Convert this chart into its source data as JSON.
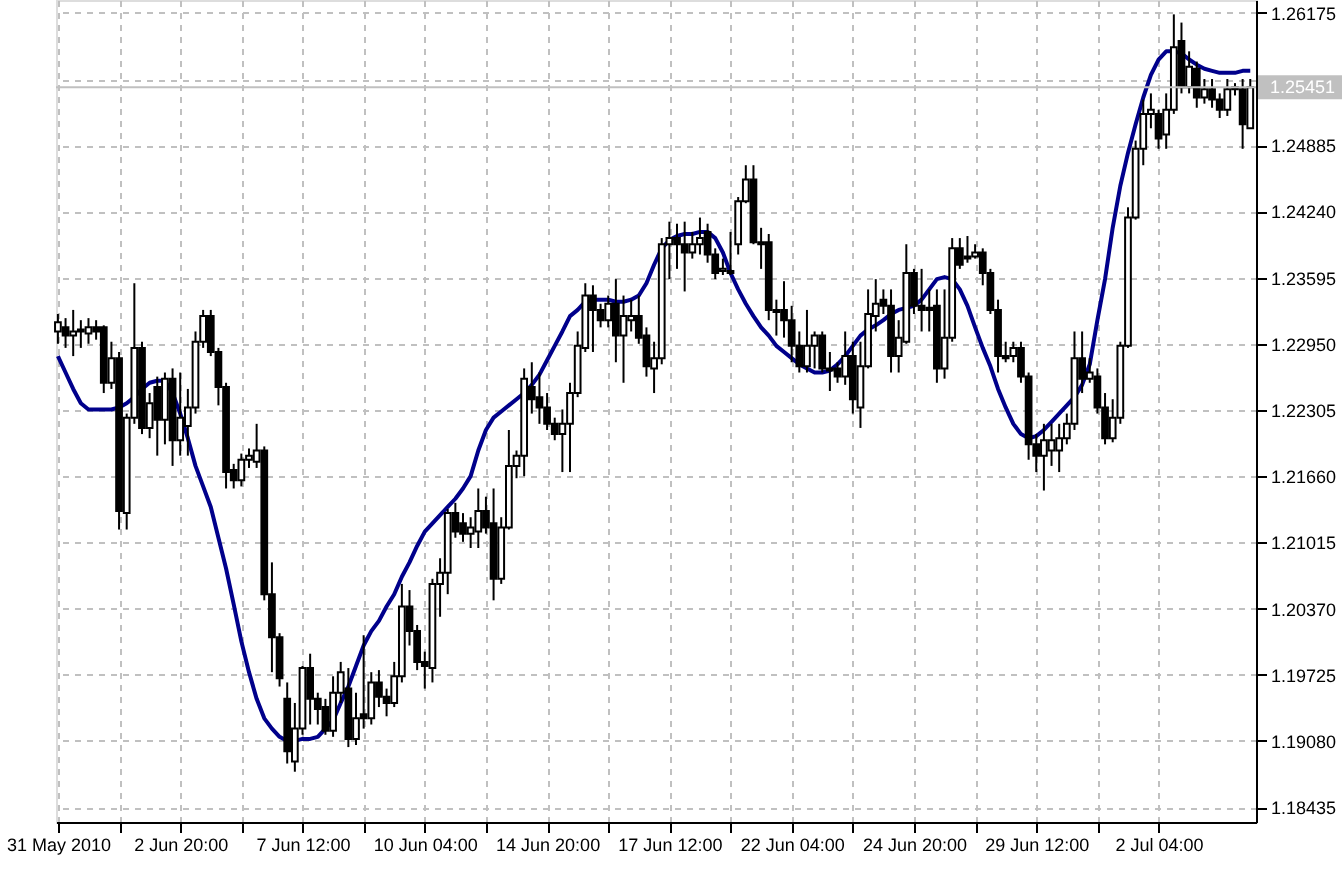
{
  "chart_data": {
    "type": "candlestick",
    "color": "#000000",
    "categories": [
      "31 May 2010",
      null,
      null,
      null,
      null,
      null,
      null,
      null,
      null,
      null,
      null,
      null,
      null,
      null,
      null,
      null,
      "2 Jun 20:00",
      null,
      null,
      null,
      null,
      null,
      null,
      null,
      null,
      null,
      null,
      null,
      null,
      null,
      null,
      null,
      "7 Jun 12:00",
      null,
      null,
      null,
      null,
      null,
      null,
      null,
      null,
      null,
      null,
      null,
      null,
      null,
      null,
      null,
      "10 Jun 04:00",
      null,
      null,
      null,
      null,
      null,
      null,
      null,
      null,
      null,
      null,
      null,
      null,
      null,
      null,
      null,
      "14 Jun 20:00",
      null,
      null,
      null,
      null,
      null,
      null,
      null,
      null,
      null,
      null,
      null,
      null,
      null,
      null,
      null,
      "17 Jun 12:00",
      null,
      null,
      null,
      null,
      null,
      null,
      null,
      null,
      null,
      null,
      null,
      null,
      null,
      null,
      null,
      "22 Jun 04:00",
      null,
      null,
      null,
      null,
      null,
      null,
      null,
      null,
      null,
      null,
      null,
      null,
      null,
      null,
      null,
      "24 Jun 20:00",
      null,
      null,
      null,
      null,
      null,
      null,
      null,
      null,
      null,
      null,
      null,
      null,
      null,
      null,
      null,
      "29 Jun 12:00",
      null,
      null,
      null,
      null,
      null,
      null,
      null,
      null,
      null,
      null,
      null,
      null,
      null,
      null,
      null,
      "2 Jul 04:00",
      null,
      null,
      null,
      null,
      null,
      null,
      null,
      null,
      null,
      null,
      null,
      null
    ],
    "ohlc": [
      [
        1.2307,
        1.2324,
        1.2295,
        1.2316
      ],
      [
        1.2311,
        1.232,
        1.2291,
        1.2303
      ],
      [
        1.2303,
        1.2328,
        1.2283,
        1.2307
      ],
      [
        1.2307,
        1.2318,
        1.2291,
        1.2309
      ],
      [
        1.2305,
        1.232,
        1.2295,
        1.2311
      ],
      [
        1.2311,
        1.2318,
        1.2299,
        1.2307
      ],
      [
        1.2311,
        1.2313,
        1.2247,
        1.2257
      ],
      [
        1.2257,
        1.2297,
        1.2251,
        1.2281
      ],
      [
        1.2281,
        1.2287,
        1.2114,
        1.2132
      ],
      [
        1.213,
        1.2227,
        1.2114,
        1.2223
      ],
      [
        1.2223,
        1.2354,
        1.2217,
        1.2291
      ],
      [
        1.2291,
        1.2297,
        1.2207,
        1.2213
      ],
      [
        1.2213,
        1.2247,
        1.2203,
        1.2237
      ],
      [
        1.2253,
        1.2263,
        1.2186,
        1.2221
      ],
      [
        1.2221,
        1.2267,
        1.2197,
        1.2261
      ],
      [
        1.2261,
        1.2271,
        1.2176,
        1.2201
      ],
      [
        1.2201,
        1.2267,
        1.2186,
        1.2223
      ],
      [
        1.2215,
        1.2251,
        1.2186,
        1.2233
      ],
      [
        1.2233,
        1.2307,
        1.2227,
        1.2297
      ],
      [
        1.2297,
        1.2328,
        1.2291,
        1.2322
      ],
      [
        1.2322,
        1.2328,
        1.2283,
        1.2287
      ],
      [
        1.2287,
        1.2291,
        1.2235,
        1.2253
      ],
      [
        1.2253,
        1.2257,
        1.2154,
        1.217
      ],
      [
        1.2172,
        1.2178,
        1.2154,
        1.2162
      ],
      [
        1.2162,
        1.2188,
        1.2156,
        1.2182
      ],
      [
        1.2182,
        1.2193,
        1.2174,
        1.2186
      ],
      [
        1.218,
        1.2217,
        1.2174,
        1.2191
      ],
      [
        1.2191,
        1.2195,
        1.2045,
        1.2051
      ],
      [
        1.2051,
        1.2082,
        1.1975,
        1.2009
      ],
      [
        1.2009,
        1.2013,
        1.1961,
        1.1969
      ],
      [
        1.1949,
        1.1965,
        1.1886,
        1.1898
      ],
      [
        1.1888,
        1.1945,
        1.1878,
        1.192
      ],
      [
        1.192,
        1.1981,
        1.1914,
        1.1979
      ],
      [
        1.1979,
        1.1993,
        1.1924,
        1.1949
      ],
      [
        1.1949,
        1.1955,
        1.1924,
        1.1939
      ],
      [
        1.1941,
        1.1949,
        1.1914,
        1.1918
      ],
      [
        1.1918,
        1.1971,
        1.1912,
        1.1955
      ],
      [
        1.1955,
        1.1985,
        1.1945,
        1.1975
      ],
      [
        1.1959,
        1.1979,
        1.1902,
        1.191
      ],
      [
        1.191,
        1.1955,
        1.1904,
        1.193
      ],
      [
        1.1934,
        1.2011,
        1.192,
        1.193
      ],
      [
        1.193,
        1.1975,
        1.1924,
        1.1965
      ],
      [
        1.1965,
        1.1977,
        1.1941,
        1.1951
      ],
      [
        1.1951,
        1.1959,
        1.1932,
        1.1945
      ],
      [
        1.1945,
        1.1985,
        1.1941,
        1.1971
      ],
      [
        1.1971,
        1.2061,
        1.1965,
        1.2039
      ],
      [
        1.2039,
        1.2055,
        1.2001,
        1.2015
      ],
      [
        1.2015,
        1.2021,
        1.1977,
        1.1985
      ],
      [
        1.1985,
        1.1995,
        1.1959,
        1.1981
      ],
      [
        1.1979,
        1.2066,
        1.1965,
        1.2061
      ],
      [
        1.2061,
        1.2086,
        1.2029,
        1.2072
      ],
      [
        1.2072,
        1.2134,
        1.2051,
        1.213
      ],
      [
        1.213,
        1.214,
        1.2106,
        1.2112
      ],
      [
        1.212,
        1.213,
        1.2102,
        1.211
      ],
      [
        1.211,
        1.2126,
        1.2096,
        1.2116
      ],
      [
        1.2112,
        1.2154,
        1.2096,
        1.2132
      ],
      [
        1.2132,
        1.2146,
        1.211,
        1.2116
      ],
      [
        1.212,
        1.2154,
        1.2045,
        1.2066
      ],
      [
        1.2066,
        1.2126,
        1.2061,
        1.2116
      ],
      [
        1.2116,
        1.2211,
        1.2114,
        1.2176
      ],
      [
        1.2176,
        1.2191,
        1.2164,
        1.2186
      ],
      [
        1.2186,
        1.2271,
        1.2166,
        1.2261
      ],
      [
        1.2253,
        1.2277,
        1.2227,
        1.2241
      ],
      [
        1.2243,
        1.2267,
        1.2217,
        1.2233
      ],
      [
        1.2233,
        1.2247,
        1.2211,
        1.2217
      ],
      [
        1.2217,
        1.2223,
        1.2201,
        1.2207
      ],
      [
        1.2207,
        1.2231,
        1.217,
        1.2217
      ],
      [
        1.2217,
        1.2257,
        1.217,
        1.2247
      ],
      [
        1.2247,
        1.2307,
        1.2243,
        1.2293
      ],
      [
        1.2291,
        1.2354,
        1.2287,
        1.2342
      ],
      [
        1.2342,
        1.2352,
        1.2287,
        1.2328
      ],
      [
        1.2328,
        1.2334,
        1.2311,
        1.2318
      ],
      [
        1.2318,
        1.2342,
        1.2311,
        1.2334
      ],
      [
        1.2334,
        1.2358,
        1.2277,
        1.2303
      ],
      [
        1.2303,
        1.2342,
        1.2257,
        1.2322
      ],
      [
        1.2318,
        1.2338,
        1.2307,
        1.2322
      ],
      [
        1.2322,
        1.2342,
        1.2295,
        1.2301
      ],
      [
        1.2303,
        1.2311,
        1.2263,
        1.2273
      ],
      [
        1.2271,
        1.2297,
        1.2247,
        1.2281
      ],
      [
        1.2281,
        1.2398,
        1.2275,
        1.2392
      ],
      [
        1.2392,
        1.2414,
        1.2358,
        1.2398
      ],
      [
        1.2398,
        1.2412,
        1.2368,
        1.2392
      ],
      [
        1.2392,
        1.2414,
        1.2346,
        1.2384
      ],
      [
        1.2384,
        1.2404,
        1.2378,
        1.2392
      ],
      [
        1.2392,
        1.2418,
        1.2382,
        1.2398
      ],
      [
        1.2404,
        1.2412,
        1.2374,
        1.2382
      ],
      [
        1.2382,
        1.2388,
        1.2358,
        1.2364
      ],
      [
        1.2366,
        1.2378,
        1.2362,
        1.2368
      ],
      [
        1.2366,
        1.2404,
        1.2362,
        1.2364
      ],
      [
        1.2392,
        1.2438,
        1.2382,
        1.2434
      ],
      [
        1.2434,
        1.2469,
        1.2432,
        1.2455
      ],
      [
        1.2455,
        1.2469,
        1.2392,
        1.2394
      ],
      [
        1.2394,
        1.2408,
        1.2368,
        1.2392
      ],
      [
        1.2394,
        1.2402,
        1.2318,
        1.2328
      ],
      [
        1.2328,
        1.2338,
        1.2303,
        1.2326
      ],
      [
        1.2328,
        1.2356,
        1.2301,
        1.2318
      ],
      [
        1.2318,
        1.2332,
        1.2277,
        1.2293
      ],
      [
        1.2293,
        1.2307,
        1.2267,
        1.2273
      ],
      [
        1.2273,
        1.2328,
        1.2267,
        1.2293
      ],
      [
        1.2293,
        1.2307,
        1.2271,
        1.2303
      ],
      [
        1.2303,
        1.2307,
        1.2267,
        1.2271
      ],
      [
        1.2271,
        1.2287,
        1.2249,
        1.2269
      ],
      [
        1.2271,
        1.2277,
        1.2257,
        1.2263
      ],
      [
        1.2263,
        1.2307,
        1.2255,
        1.2283
      ],
      [
        1.2283,
        1.2297,
        1.2227,
        1.2241
      ],
      [
        1.2233,
        1.2297,
        1.2213,
        1.2273
      ],
      [
        1.2273,
        1.2348,
        1.2271,
        1.2324
      ],
      [
        1.2322,
        1.2358,
        1.2307,
        1.2334
      ],
      [
        1.2338,
        1.2348,
        1.2324,
        1.2332
      ],
      [
        1.2332,
        1.2348,
        1.2267,
        1.2283
      ],
      [
        1.2283,
        1.2318,
        1.2267,
        1.2301
      ],
      [
        1.2297,
        1.2392,
        1.2295,
        1.2364
      ],
      [
        1.2364,
        1.2368,
        1.2324,
        1.2332
      ],
      [
        1.2332,
        1.2368,
        1.2307,
        1.2328
      ],
      [
        1.233,
        1.2348,
        1.2307,
        1.2328
      ],
      [
        1.2332,
        1.2348,
        1.2257,
        1.2271
      ],
      [
        1.2271,
        1.2348,
        1.2261,
        1.2301
      ],
      [
        1.2301,
        1.2398,
        1.2297,
        1.2388
      ],
      [
        1.2388,
        1.2398,
        1.2368,
        1.2372
      ],
      [
        1.238,
        1.24,
        1.2374,
        1.2378
      ],
      [
        1.238,
        1.2392,
        1.2378,
        1.2384
      ],
      [
        1.2384,
        1.2388,
        1.2352,
        1.2364
      ],
      [
        1.2364,
        1.2368,
        1.2324,
        1.2328
      ],
      [
        1.2328,
        1.2338,
        1.2267,
        1.2283
      ],
      [
        1.2283,
        1.2297,
        1.2277,
        1.2281
      ],
      [
        1.2283,
        1.2297,
        1.2277,
        1.2291
      ],
      [
        1.2291,
        1.2297,
        1.2257,
        1.2263
      ],
      [
        1.2263,
        1.2267,
        1.2182,
        1.2197
      ],
      [
        1.2197,
        1.2207,
        1.217,
        1.2186
      ],
      [
        1.2186,
        1.2217,
        1.2152,
        1.2201
      ],
      [
        1.2191,
        1.2217,
        1.2176,
        1.2201
      ],
      [
        1.2191,
        1.2217,
        1.217,
        1.2203
      ],
      [
        1.2203,
        1.2227,
        1.2197,
        1.2217
      ],
      [
        1.2217,
        1.2307,
        1.2211,
        1.2281
      ],
      [
        1.2281,
        1.2307,
        1.2247,
        1.2261
      ],
      [
        1.2261,
        1.2281,
        1.2257,
        1.2267
      ],
      [
        1.2263,
        1.2271,
        1.2227,
        1.2233
      ],
      [
        1.2233,
        1.2247,
        1.2197,
        1.2203
      ],
      [
        1.2203,
        1.2241,
        1.2199,
        1.2223
      ],
      [
        1.2223,
        1.2297,
        1.2217,
        1.2293
      ],
      [
        1.2293,
        1.2428,
        1.2291,
        1.2418
      ],
      [
        1.2418,
        1.2493,
        1.2416,
        1.2485
      ],
      [
        1.2485,
        1.2533,
        1.2469,
        1.2519
      ],
      [
        1.2519,
        1.2539,
        1.2505,
        1.2523
      ],
      [
        1.2519,
        1.2523,
        1.2485,
        1.2495
      ],
      [
        1.2499,
        1.2539,
        1.2485,
        1.2523
      ],
      [
        1.2523,
        1.2616,
        1.2519,
        1.2584
      ],
      [
        1.259,
        1.2608,
        1.2539,
        1.2545
      ],
      [
        1.2545,
        1.258,
        1.2539,
        1.2565
      ],
      [
        1.2563,
        1.257,
        1.2525,
        1.2535
      ],
      [
        1.2535,
        1.2553,
        1.2529,
        1.2543
      ],
      [
        1.2543,
        1.2553,
        1.2525,
        1.2533
      ],
      [
        1.2533,
        1.2539,
        1.2515,
        1.2523
      ],
      [
        1.2523,
        1.2553,
        1.2517,
        1.2543
      ],
      [
        1.2543,
        1.2549,
        1.2537,
        1.2545
      ],
      [
        1.2543,
        1.2553,
        1.2485,
        1.2509
      ],
      [
        1.2505,
        1.2553,
        1.2505,
        1.2545
      ]
    ],
    "series": [
      {
        "type": "line",
        "color": "#00008b",
        "values": [
          1.2283,
          1.2267,
          1.2251,
          1.2237,
          1.2231,
          1.2231,
          1.2231,
          1.2231,
          1.2233,
          1.2237,
          1.2243,
          1.2251,
          1.2257,
          1.2259,
          1.2259,
          1.2247,
          1.2227,
          1.2203,
          1.2176,
          1.2156,
          1.2136,
          1.2106,
          1.2076,
          1.2041,
          1.2005,
          1.1975,
          1.1949,
          1.193,
          1.192,
          1.1912,
          1.1908,
          1.1908,
          1.191,
          1.191,
          1.1912,
          1.192,
          1.1928,
          1.1945,
          1.1961,
          1.1981,
          1.2001,
          1.2015,
          1.2025,
          1.2039,
          1.2051,
          1.2068,
          1.2082,
          1.2098,
          1.2112,
          1.212,
          1.2128,
          1.2136,
          1.2144,
          1.2154,
          1.2166,
          1.2191,
          1.2211,
          1.2223,
          1.2229,
          1.2235,
          1.2241,
          1.2247,
          1.2255,
          1.2265,
          1.2279,
          1.2293,
          1.2307,
          1.2322,
          1.2328,
          1.2336,
          1.2338,
          1.2338,
          1.2338,
          1.2336,
          1.2336,
          1.2338,
          1.2342,
          1.2354,
          1.2372,
          1.2388,
          1.2396,
          1.24,
          1.2402,
          1.2402,
          1.2404,
          1.2404,
          1.2398,
          1.2384,
          1.2364,
          1.2348,
          1.2334,
          1.2322,
          1.2311,
          1.2303,
          1.2293,
          1.2287,
          1.2281,
          1.2275,
          1.2271,
          1.2267,
          1.2267,
          1.2269,
          1.2275,
          1.2283,
          1.2293,
          1.2303,
          1.2309,
          1.2313,
          1.2318,
          1.2324,
          1.2328,
          1.233,
          1.2332,
          1.2338,
          1.2348,
          1.2358,
          1.236,
          1.2358,
          1.2348,
          1.2332,
          1.2311,
          1.2291,
          1.2273,
          1.2251,
          1.2233,
          1.2217,
          1.2207,
          1.2203,
          1.2205,
          1.2211,
          1.2219,
          1.2227,
          1.2235,
          1.2243,
          1.2255,
          1.2275,
          1.2318,
          1.2358,
          1.2408,
          1.2449,
          1.2481,
          1.2509,
          1.2535,
          1.2557,
          1.2572,
          1.258,
          1.258,
          1.2578,
          1.2572,
          1.2567,
          1.2563,
          1.2561,
          1.2559,
          1.2559,
          1.2559,
          1.2561,
          1.2561
        ]
      }
    ],
    "ylim": [
      1.1829,
      1.263
    ],
    "yticks": [
      1.26175,
      {
        "value": 1.2553,
        "label": null
      },
      1.24885,
      {
        "value": 1.2424,
        "label": "1.24240"
      },
      1.23595,
      {
        "value": 1.2295,
        "label": "1.22950"
      },
      1.22305,
      {
        "value": 1.2166,
        "label": "1.21660"
      },
      1.21015,
      {
        "value": 1.2037,
        "label": "1.20370"
      },
      1.19725,
      {
        "value": 1.1908,
        "label": "1.19080"
      },
      1.18435
    ],
    "ref_lines": [
      {
        "axis": "y",
        "value": 1.25451,
        "label": "1.25451",
        "color": "#c0c0c0"
      }
    ],
    "grid": true,
    "marker": "none",
    "line_style": "solid"
  }
}
